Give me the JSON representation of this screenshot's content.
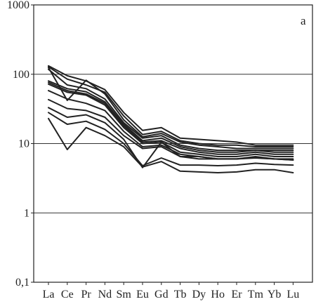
{
  "chart_data": {
    "type": "line",
    "panel_label": "a",
    "title": "",
    "xlabel": "",
    "ylabel": "",
    "y_scale": "log",
    "ylim": [
      0.1,
      1000
    ],
    "y_ticks": [
      {
        "value": 1000,
        "label": "1000"
      },
      {
        "value": 100,
        "label": "100"
      },
      {
        "value": 10,
        "label": "10"
      },
      {
        "value": 1,
        "label": "1"
      },
      {
        "value": 0.1,
        "label": "0,1"
      }
    ],
    "grid": "horizontal at 100, 10, 1",
    "categories": [
      "La",
      "Ce",
      "Pr",
      "Nd",
      "Sm",
      "Eu",
      "Gd",
      "Tb",
      "Dy",
      "Ho",
      "Er",
      "Tm",
      "Yb",
      "Lu"
    ],
    "series": [
      {
        "values": [
          132,
          95,
          80,
          60,
          28,
          15.5,
          17,
          12,
          11.5,
          11,
          10.5,
          9.5,
          9.5,
          9.5
        ]
      },
      {
        "values": [
          128,
          85,
          70,
          55,
          25,
          13.5,
          15,
          11,
          10,
          9.5,
          9.5,
          9,
          9,
          9
        ]
      },
      {
        "values": [
          125,
          42,
          82,
          52,
          22,
          12.5,
          14,
          10.5,
          9.5,
          9,
          8.5,
          8.5,
          8.5,
          8.5
        ]
      },
      {
        "values": [
          118,
          70,
          62,
          44,
          20,
          12,
          13,
          9.5,
          8.5,
          8,
          8,
          8,
          8,
          8
        ]
      },
      {
        "values": [
          80,
          62,
          56,
          40,
          19,
          11,
          12,
          9,
          8,
          7.5,
          7.5,
          8,
          7.5,
          7.5
        ]
      },
      {
        "values": [
          76,
          58,
          52,
          38,
          18,
          10.5,
          11,
          8.5,
          7.5,
          7,
          7,
          7.5,
          7,
          7
        ]
      },
      {
        "values": [
          72,
          55,
          50,
          36,
          17,
          10,
          10.5,
          7.5,
          7,
          6.5,
          6.5,
          7,
          6.5,
          6.5
        ]
      },
      {
        "values": [
          58,
          44,
          38,
          30,
          15,
          9,
          9.5,
          7,
          6.5,
          6,
          6,
          6.5,
          6,
          6
        ]
      },
      {
        "values": [
          43,
          32,
          30,
          24,
          13,
          8.5,
          9,
          6.5,
          6,
          6,
          6,
          6.3,
          6,
          5.8
        ]
      },
      {
        "values": [
          33,
          24,
          26,
          20,
          11.5,
          4.5,
          10.5,
          6.5,
          6.5,
          6,
          6,
          6.2,
          6,
          5.8
        ]
      },
      {
        "values": [
          23,
          8.2,
          17,
          13,
          9,
          4.6,
          5.5,
          4,
          3.9,
          3.8,
          3.9,
          4.2,
          4.2,
          3.8
        ]
      },
      {
        "values": [
          28,
          19,
          21,
          16,
          10,
          4.8,
          6.2,
          4.9,
          4.9,
          4.8,
          4.9,
          5.2,
          5,
          4.9
        ]
      }
    ]
  }
}
